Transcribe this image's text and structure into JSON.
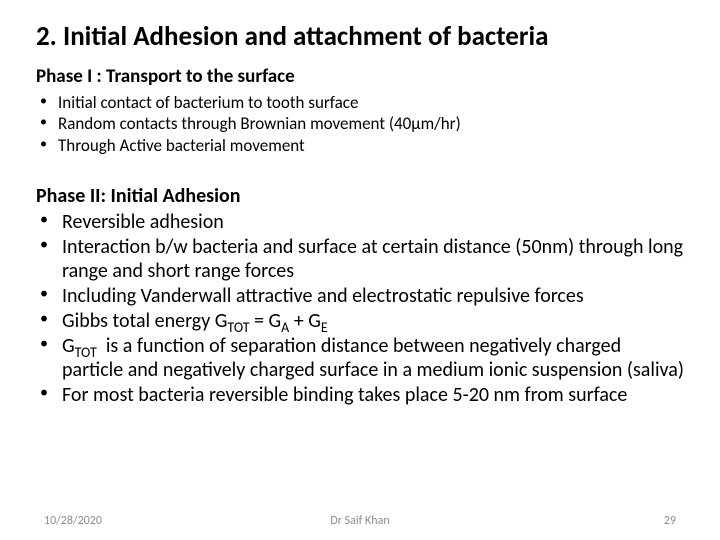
{
  "title": "2. Initial Adhesion and attachment of bacteria",
  "phase1": {
    "heading": "Phase I : Transport to the surface",
    "items": [
      "Initial contact of bacterium to tooth surface",
      "Random contacts through Brownian movement (40µm/hr)",
      "Through Active bacterial movement"
    ]
  },
  "phase2": {
    "heading": "Phase II: Initial Adhesion",
    "items": [
      "Reversible adhesion",
      "Interaction b/w bacteria and surface at certain distance (50nm) through long range and short range forces",
      "Including Vanderwall attractive and electrostatic repulsive forces",
      "Gibbs total energy G<span class=\"sub\">TOT</span> = G<span class=\"sub\">A</span> + G<span class=\"sub\">E</span>",
      "G<span class=\"sub\">TOT</span>&nbsp;&nbsp;is a function of separation distance between negatively charged particle and negatively charged surface in a medium ionic suspension (saliva)",
      "For most bacteria reversible binding takes place 5-20 nm from surface"
    ]
  },
  "footer": {
    "date": "10/28/2020",
    "author": "Dr Saif Khan",
    "page": "29"
  },
  "colors": {
    "text": "#000000",
    "footer_text": "#8c8c8c",
    "background": "#ffffff"
  },
  "fonts": {
    "title_size": 27,
    "heading_size": 19,
    "heading2_size": 20,
    "small_list_size": 17,
    "large_list_size": 20,
    "footer_size": 12
  }
}
